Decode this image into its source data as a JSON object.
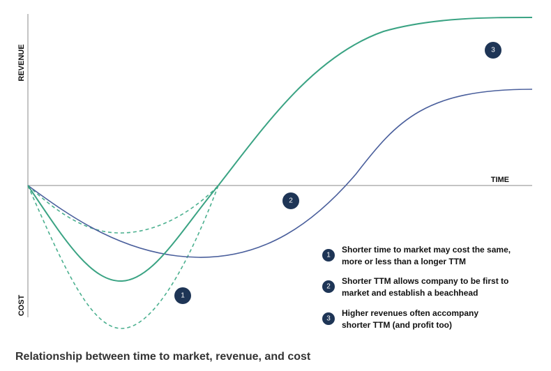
{
  "axes": {
    "y_top": "REVENUE",
    "y_bottom": "COST",
    "x": "TIME"
  },
  "markers": [
    "1",
    "2",
    "3"
  ],
  "legend": [
    {
      "number": "1",
      "lines": [
        "Shorter time to market may cost the same,",
        "more or less than a longer TTM"
      ]
    },
    {
      "number": "2",
      "lines": [
        "Shorter TTM allows company to be first to",
        "market and establish a beachhead"
      ]
    },
    {
      "number": "3",
      "lines": [
        "Higher revenues often accompany",
        "shorter TTM (and profit too)"
      ]
    }
  ],
  "caption": "Relationship between time to market, revenue, and cost"
}
